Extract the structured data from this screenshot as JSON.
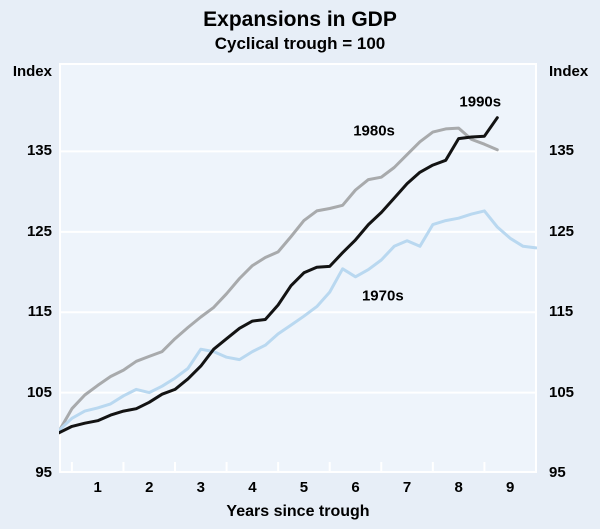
{
  "title": "Expansions in GDP",
  "subtitle": "Cyclical trough = 100",
  "chart_data": {
    "type": "line",
    "title": "Expansions in GDP",
    "subtitle": "Cyclical trough = 100",
    "xlabel": "Years since trough",
    "ylabel_left": "Index",
    "ylabel_right": "Index",
    "xlim": [
      0.25,
      9.52
    ],
    "ylim": [
      95,
      146
    ],
    "grid": "horizontal-white-on-light-blue",
    "legend_position": "inline-labels",
    "x_ticks": [
      1,
      2,
      3,
      4,
      5,
      6,
      7,
      8,
      9
    ],
    "x_minor_ticks": [
      0.5,
      1.5,
      2.5,
      3.5,
      4.5,
      5.5,
      6.5,
      7.5,
      8.5
    ],
    "y_ticks": [
      135,
      125,
      115,
      105,
      95
    ],
    "y_gridlines": [
      105,
      115,
      125,
      135
    ],
    "colors": {
      "page_background": "#e7eef7",
      "plot_background": "#eef4fb",
      "grid": "#ffffff",
      "text": "#000000",
      "series_1990s": "#131313",
      "series_1980s": "#a8aaac",
      "series_1970s": "#b9d8f0"
    },
    "series": [
      {
        "name": "1980s",
        "color": "#a8aaac",
        "label": {
          "t": 6.36,
          "v": 137.6
        },
        "points": [
          [
            0.25,
            100.2
          ],
          [
            0.5,
            103.0
          ],
          [
            0.75,
            104.7
          ],
          [
            1.0,
            105.9
          ],
          [
            1.25,
            107.0
          ],
          [
            1.5,
            107.8
          ],
          [
            1.75,
            108.9
          ],
          [
            2.0,
            109.5
          ],
          [
            2.25,
            110.1
          ],
          [
            2.5,
            111.7
          ],
          [
            2.75,
            113.1
          ],
          [
            3.0,
            114.4
          ],
          [
            3.25,
            115.6
          ],
          [
            3.5,
            117.3
          ],
          [
            3.75,
            119.2
          ],
          [
            4.0,
            120.8
          ],
          [
            4.25,
            121.8
          ],
          [
            4.5,
            122.5
          ],
          [
            4.75,
            124.4
          ],
          [
            5.0,
            126.4
          ],
          [
            5.25,
            127.6
          ],
          [
            5.5,
            127.9
          ],
          [
            5.75,
            128.3
          ],
          [
            6.0,
            130.2
          ],
          [
            6.25,
            131.5
          ],
          [
            6.5,
            131.8
          ],
          [
            6.75,
            133.0
          ],
          [
            7.0,
            134.6
          ],
          [
            7.25,
            136.2
          ],
          [
            7.5,
            137.4
          ],
          [
            7.75,
            137.8
          ],
          [
            8.0,
            137.9
          ],
          [
            8.25,
            136.5
          ],
          [
            8.5,
            135.9
          ],
          [
            8.75,
            135.2
          ]
        ]
      },
      {
        "name": "1970s",
        "color": "#b9d8f0",
        "label": {
          "t": 6.53,
          "v": 117.0
        },
        "points": [
          [
            0.25,
            100.3
          ],
          [
            0.5,
            101.8
          ],
          [
            0.75,
            102.7
          ],
          [
            1.0,
            103.1
          ],
          [
            1.25,
            103.6
          ],
          [
            1.5,
            104.6
          ],
          [
            1.75,
            105.4
          ],
          [
            2.0,
            105.0
          ],
          [
            2.25,
            105.8
          ],
          [
            2.5,
            106.8
          ],
          [
            2.75,
            108.0
          ],
          [
            3.0,
            110.4
          ],
          [
            3.25,
            110.1
          ],
          [
            3.5,
            109.4
          ],
          [
            3.75,
            109.1
          ],
          [
            4.0,
            110.1
          ],
          [
            4.25,
            110.9
          ],
          [
            4.5,
            112.3
          ],
          [
            4.75,
            113.4
          ],
          [
            5.0,
            114.5
          ],
          [
            5.25,
            115.7
          ],
          [
            5.5,
            117.5
          ],
          [
            5.75,
            120.4
          ],
          [
            6.0,
            119.4
          ],
          [
            6.25,
            120.3
          ],
          [
            6.5,
            121.5
          ],
          [
            6.75,
            123.2
          ],
          [
            7.0,
            123.9
          ],
          [
            7.25,
            123.2
          ],
          [
            7.5,
            125.9
          ],
          [
            7.75,
            126.4
          ],
          [
            8.0,
            126.7
          ],
          [
            8.25,
            127.2
          ],
          [
            8.5,
            127.6
          ],
          [
            8.75,
            125.6
          ],
          [
            9.0,
            124.2
          ],
          [
            9.25,
            123.2
          ],
          [
            9.5,
            123.0
          ]
        ]
      },
      {
        "name": "1990s",
        "color": "#131313",
        "label": {
          "t": 8.42,
          "v": 141.2
        },
        "points": [
          [
            0.25,
            100.0
          ],
          [
            0.5,
            100.8
          ],
          [
            0.75,
            101.2
          ],
          [
            1.0,
            101.5
          ],
          [
            1.25,
            102.2
          ],
          [
            1.5,
            102.7
          ],
          [
            1.75,
            103.0
          ],
          [
            2.0,
            103.8
          ],
          [
            2.25,
            104.8
          ],
          [
            2.5,
            105.4
          ],
          [
            2.75,
            106.7
          ],
          [
            3.0,
            108.3
          ],
          [
            3.25,
            110.4
          ],
          [
            3.5,
            111.7
          ],
          [
            3.75,
            113.0
          ],
          [
            4.0,
            113.9
          ],
          [
            4.25,
            114.1
          ],
          [
            4.5,
            115.9
          ],
          [
            4.75,
            118.3
          ],
          [
            5.0,
            119.9
          ],
          [
            5.25,
            120.6
          ],
          [
            5.5,
            120.7
          ],
          [
            5.75,
            122.4
          ],
          [
            6.0,
            124.0
          ],
          [
            6.25,
            125.9
          ],
          [
            6.5,
            127.4
          ],
          [
            6.75,
            129.2
          ],
          [
            7.0,
            131.0
          ],
          [
            7.25,
            132.4
          ],
          [
            7.5,
            133.3
          ],
          [
            7.75,
            133.9
          ],
          [
            8.0,
            136.6
          ],
          [
            8.25,
            136.8
          ],
          [
            8.5,
            136.9
          ],
          [
            8.75,
            139.2
          ]
        ]
      }
    ]
  }
}
